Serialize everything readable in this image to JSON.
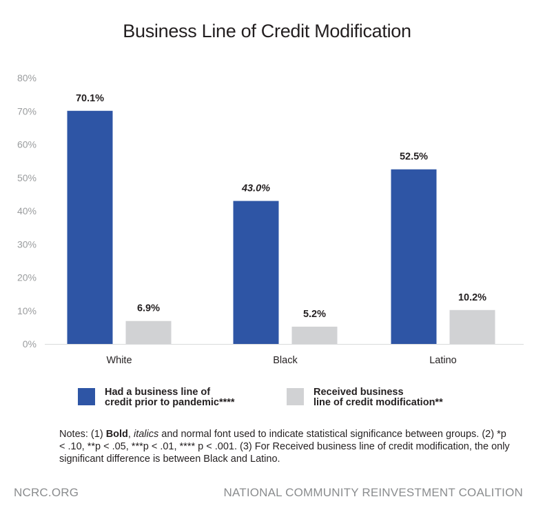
{
  "chart_data": {
    "type": "bar",
    "title": "Business Line of Credit Modification",
    "xlabel": "",
    "ylabel": "",
    "ylim": [
      0,
      80
    ],
    "yticks": [
      "0%",
      "10%",
      "20%",
      "30%",
      "40%",
      "50%",
      "60%",
      "70%",
      "80%"
    ],
    "categories": [
      "White",
      "Black",
      "Latino"
    ],
    "series": [
      {
        "name": "Had a business line of credit prior to pandemic****",
        "color": "#2e55a5",
        "values": [
          70.1,
          43.0,
          52.5
        ],
        "labels": [
          "70.1%",
          "43.0%",
          "52.5%"
        ],
        "label_styles": [
          "bold",
          "bold-italic",
          "normal"
        ]
      },
      {
        "name": "Received business line of credit modification**",
        "color": "#d1d2d4",
        "values": [
          6.9,
          5.2,
          10.2
        ],
        "labels": [
          "6.9%",
          "5.2%",
          "10.2%"
        ],
        "label_styles": [
          "normal",
          "normal",
          "normal"
        ]
      }
    ],
    "grid": false,
    "legend_position": "bottom"
  },
  "legend": {
    "item1_line1": "Had a business line of",
    "item1_line2": "credit prior to pandemic****",
    "item2_line1": "Received business",
    "item2_line2": "line of credit modification**"
  },
  "notes": {
    "prefix": "Notes: (1) ",
    "bold_word": "Bold",
    "sep": ", ",
    "italic_word": "italics",
    "rest": " and normal font used to indicate statistical significance between groups.  (2) *p < .10, **p < .05, ***p < .01, **** p < .001.  (3) For Received business line of credit modification, the only significant difference is between Black and Latino."
  },
  "footer": {
    "left": "NCRC.ORG",
    "right": "NATIONAL COMMUNITY REINVESTMENT COALITION"
  }
}
